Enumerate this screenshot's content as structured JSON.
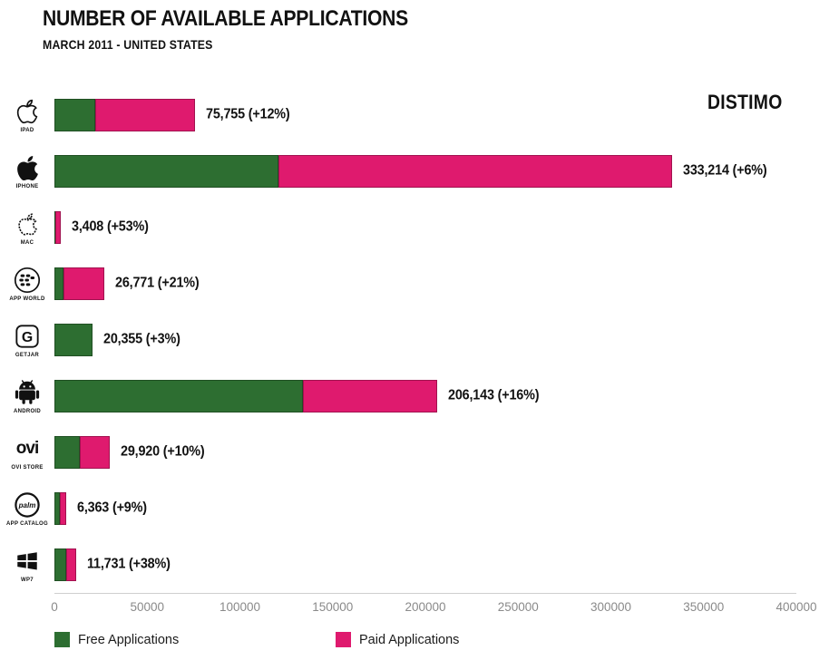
{
  "header": {
    "title": "NUMBER OF AVAILABLE APPLICATIONS",
    "subtitle": "MARCH 2011 - UNITED STATES"
  },
  "logo": "DISTIMO",
  "icons": {
    "ovi_text": "ovi",
    "palm_text": "palm",
    "getjar_letter": "G"
  },
  "chart_data": {
    "type": "bar",
    "orientation": "horizontal",
    "stacked": true,
    "title": "NUMBER OF AVAILABLE APPLICATIONS",
    "subtitle": "MARCH 2011 - UNITED STATES",
    "xlim": [
      0,
      400000
    ],
    "x_ticks": [
      "0",
      "50000",
      "100000",
      "150000",
      "200000",
      "250000",
      "300000",
      "350000",
      "400000"
    ],
    "colors": {
      "free": "#2d6e31",
      "paid": "#df1a6e"
    },
    "legend": [
      {
        "label": "Free Applications",
        "color": "#2d6e31"
      },
      {
        "label": "Paid Applications",
        "color": "#df1a6e"
      }
    ],
    "rows": [
      {
        "platform": "IPAD",
        "total": 75755,
        "free": 22000,
        "paid": 53755,
        "label": "75,755 (+12%)"
      },
      {
        "platform": "IPHONE",
        "total": 333214,
        "free": 121000,
        "paid": 212214,
        "label": "333,214 (+6%)"
      },
      {
        "platform": "MAC",
        "total": 3408,
        "free": 700,
        "paid": 2708,
        "label": "3,408 (+53%)"
      },
      {
        "platform": "APP WORLD",
        "total": 26771,
        "free": 4900,
        "paid": 21871,
        "label": "26,771 (+21%)"
      },
      {
        "platform": "GETJAR",
        "total": 20355,
        "free": 20355,
        "paid": 0,
        "label": "20,355 (+3%)"
      },
      {
        "platform": "ANDROID",
        "total": 206143,
        "free": 134000,
        "paid": 72143,
        "label": "206,143 (+16%)"
      },
      {
        "platform": "OVI STORE",
        "total": 29920,
        "free": 13700,
        "paid": 16220,
        "label": "29,920 (+10%)"
      },
      {
        "platform": "APP CATALOG",
        "total": 6363,
        "free": 2900,
        "paid": 3463,
        "label": "6,363 (+9%)"
      },
      {
        "platform": "WP7",
        "total": 11731,
        "free": 6400,
        "paid": 5331,
        "label": "11,731 (+38%)"
      }
    ]
  }
}
